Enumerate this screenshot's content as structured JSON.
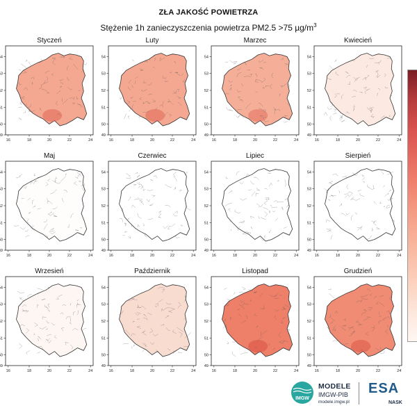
{
  "title": "ZŁA JAKOŚĆ POWIETRZA",
  "subtitle": "Stężenie 1h zanieczyszczenia powietrza PM2.5  >75 µg/m",
  "subtitle_unit_sup": "3",
  "x_ticks": [
    "16",
    "18",
    "20",
    "22",
    "24"
  ],
  "y_ticks": [
    "54",
    "53",
    "52",
    "51",
    "50",
    "49"
  ],
  "months": [
    {
      "name": "Styczeń",
      "level": 0.55,
      "fill": "#f4a891"
    },
    {
      "name": "Luty",
      "level": 0.55,
      "fill": "#f4a891"
    },
    {
      "name": "Marzec",
      "level": 0.5,
      "fill": "#f5ae98"
    },
    {
      "name": "Kwiecień",
      "level": 0.12,
      "fill": "#fce9e2"
    },
    {
      "name": "Maj",
      "level": 0.02,
      "fill": "#fffdfc"
    },
    {
      "name": "Czerwiec",
      "level": 0.0,
      "fill": "#ffffff"
    },
    {
      "name": "Lipiec",
      "level": 0.0,
      "fill": "#ffffff"
    },
    {
      "name": "Sierpień",
      "level": 0.0,
      "fill": "#ffffff"
    },
    {
      "name": "Wrzesień",
      "level": 0.04,
      "fill": "#fdf6f3"
    },
    {
      "name": "Październik",
      "level": 0.2,
      "fill": "#f9dcd0"
    },
    {
      "name": "Listopad",
      "level": 0.7,
      "fill": "#ee8069"
    },
    {
      "name": "Grudzień",
      "level": 0.65,
      "fill": "#f08b74"
    }
  ],
  "logos": {
    "modele": "MODELE",
    "imgw": "IMGW-PIB",
    "url": "modele.imgw.pl",
    "imgw_mark": "IMGW",
    "esa": "ESA",
    "nask": "NASK"
  },
  "colors": {
    "hotspot": "#d94c3f",
    "border": "#333333",
    "cell_border": "#555555"
  }
}
